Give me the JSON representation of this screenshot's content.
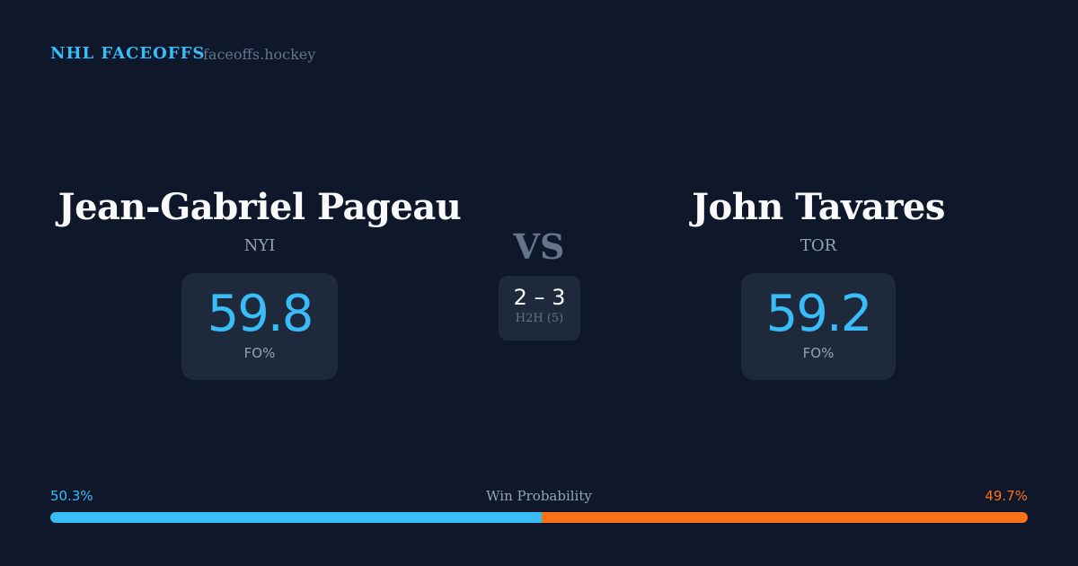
{
  "header": {
    "brand": "NHL FACEOFFS",
    "site": "faceoffs.hockey"
  },
  "left": {
    "name": "Jean-Gabriel Pageau",
    "team": "NYI",
    "fo_pct": "59.8",
    "fo_label": "FO%"
  },
  "right": {
    "name": "John Tavares",
    "team": "TOR",
    "fo_pct": "59.2",
    "fo_label": "FO%"
  },
  "center": {
    "vs": "VS",
    "h2h_score": "2 – 3",
    "h2h_label": "H2H (5)"
  },
  "win_probability": {
    "label": "Win Probability",
    "left_pct": "50.3%",
    "right_pct": "49.7%",
    "left_value": 50.3,
    "right_value": 49.7,
    "left_color": "#38bdf8",
    "right_color": "#f97316"
  }
}
